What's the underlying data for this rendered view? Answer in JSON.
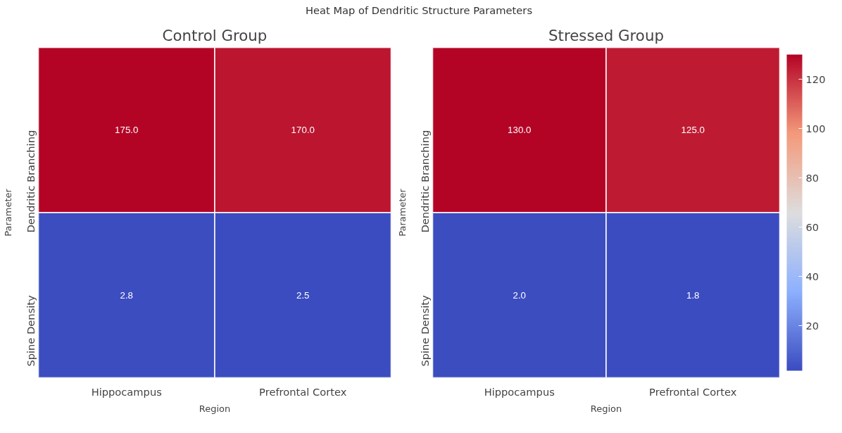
{
  "chart_data": [
    {
      "type": "heatmap",
      "title": "Control Group",
      "xlabel": "Region",
      "ylabel": "Parameter",
      "annotations": [
        "Heat Map of Dendritic Structure Parameters"
      ],
      "categories": [
        "Hippocampus",
        "Prefrontal Cortex"
      ],
      "y_categories": [
        "Dendritic Branching",
        "Spine Density"
      ],
      "cells": [
        [
          175.0,
          170.0
        ],
        [
          2.8,
          2.5
        ]
      ],
      "cell_labels": [
        [
          "175.0",
          "170.0"
        ],
        [
          "2.8",
          "2.5"
        ]
      ]
    },
    {
      "type": "heatmap",
      "title": "Stressed Group",
      "xlabel": "Region",
      "ylabel": "Parameter",
      "categories": [
        "Hippocampus",
        "Prefrontal Cortex"
      ],
      "y_categories": [
        "Dendritic Branching",
        "Spine Density"
      ],
      "cells": [
        [
          130.0,
          125.0
        ],
        [
          2.0,
          1.8
        ]
      ],
      "cell_labels": [
        [
          "130.0",
          "125.0"
        ],
        [
          "2.0",
          "1.8"
        ]
      ],
      "clim": [
        1.8,
        130
      ],
      "cticks": [
        20,
        40,
        60,
        80,
        100,
        120
      ]
    }
  ]
}
